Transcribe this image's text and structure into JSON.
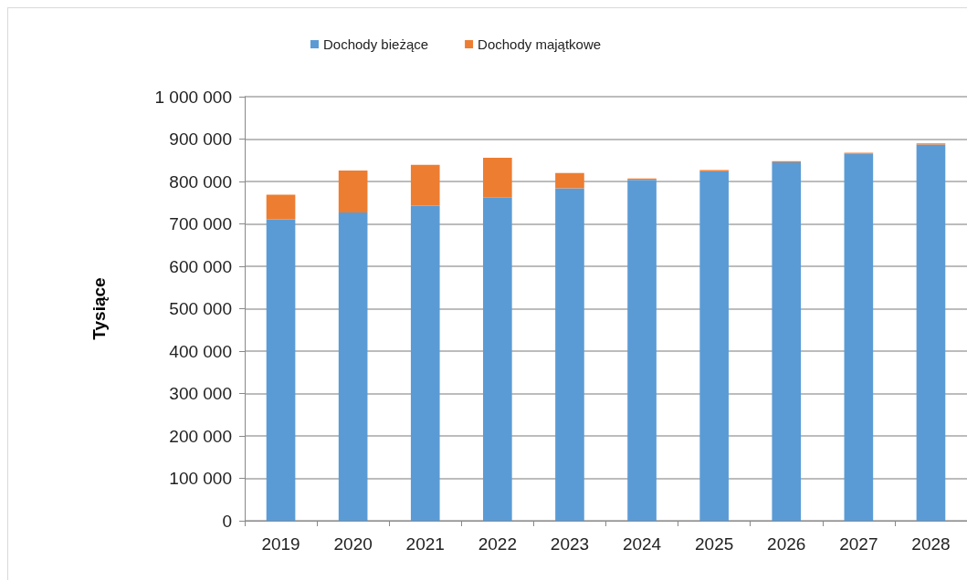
{
  "chart_data": {
    "type": "bar",
    "stacked": true,
    "ylabel": "Tysiące",
    "categories": [
      "2019",
      "2020",
      "2021",
      "2022",
      "2023",
      "2024",
      "2025",
      "2026",
      "2027",
      "2028"
    ],
    "series": [
      {
        "name": "Dochody bieżące",
        "color": "#5b9bd5",
        "values": [
          711000,
          727000,
          743000,
          762000,
          784000,
          804000,
          824000,
          845000,
          865000,
          887000
        ]
      },
      {
        "name": "Dochody majątkowe",
        "color": "#ed7d31",
        "values": [
          58000,
          99000,
          96000,
          94000,
          36000,
          3000,
          3000,
          3000,
          3000,
          3000
        ]
      }
    ],
    "ylim": [
      0,
      1000000
    ],
    "yticks": [
      0,
      {
        "value": 100000,
        "label": "100 000"
      },
      {
        "value": 200000,
        "label": "200 000"
      },
      {
        "value": 300000,
        "label": "300 000"
      },
      {
        "value": 400000,
        "label": "400 000"
      },
      {
        "value": 500000,
        "label": "500 000"
      },
      {
        "value": 600000,
        "label": "600 000"
      },
      {
        "value": 700000,
        "label": "700 000"
      },
      {
        "value": 800000,
        "label": "800 000"
      },
      {
        "value": 900000,
        "label": "900 000"
      },
      {
        "value": 1000000,
        "label": "1 000 000"
      }
    ],
    "grid": "y",
    "legend": "top"
  }
}
